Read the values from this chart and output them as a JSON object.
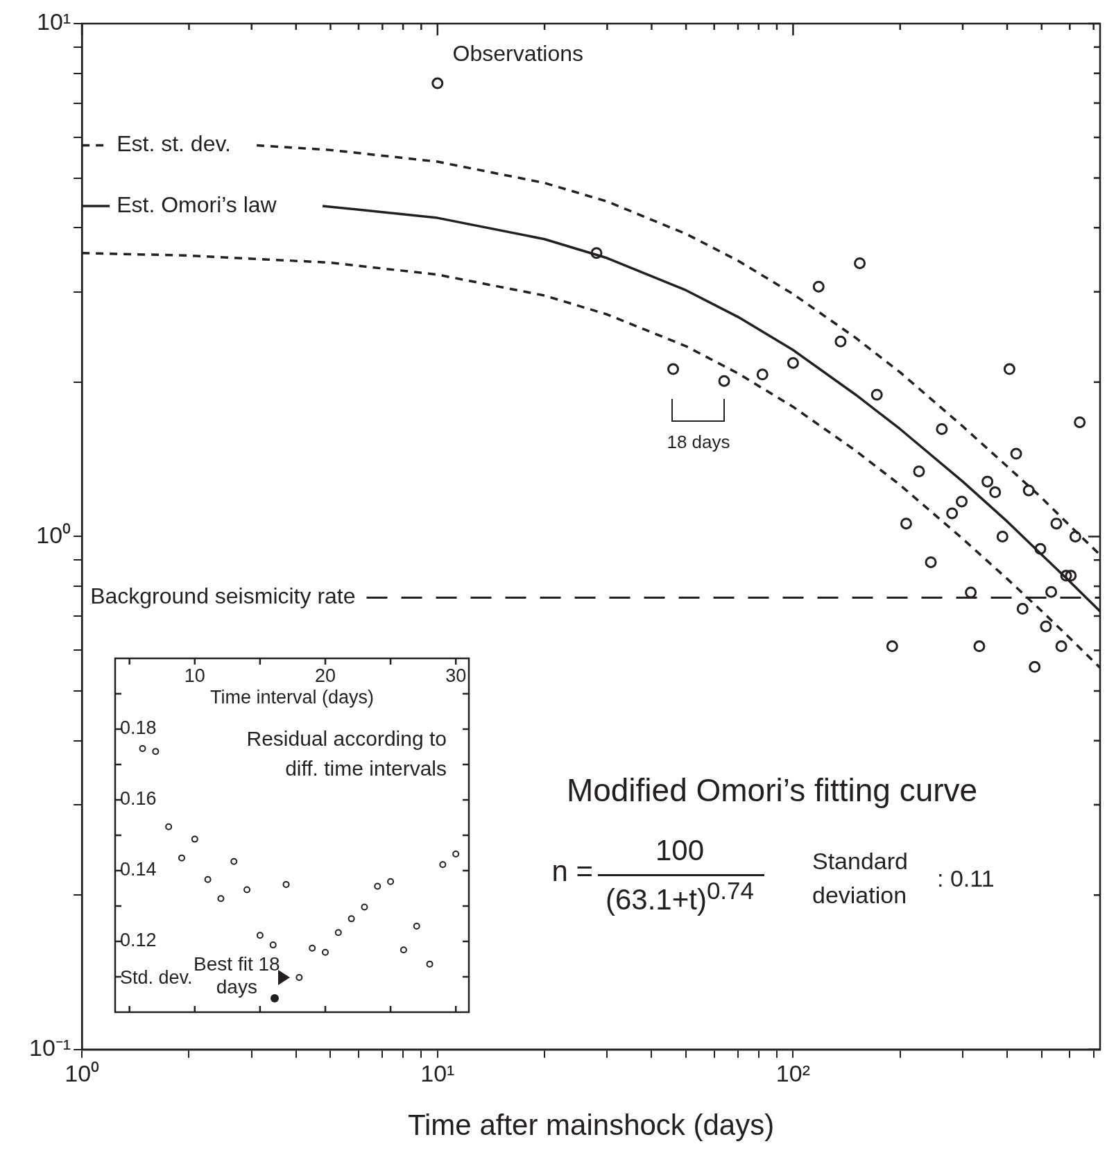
{
  "chart_data": [
    {
      "type": "scatter",
      "xlabel": "Time after mainshock (days)",
      "log": "xy",
      "legend": "left",
      "xlim": [
        1,
        730
      ],
      "ylim": [
        0.1,
        10
      ],
      "xticks": [
        {
          "value": 1,
          "label": "10⁰"
        },
        {
          "value": 2,
          "label": null
        },
        {
          "value": 3,
          "label": null
        },
        {
          "value": 4,
          "label": null
        },
        {
          "value": 5,
          "label": null
        },
        {
          "value": 6,
          "label": null
        },
        {
          "value": 7,
          "label": null
        },
        {
          "value": 8,
          "label": null
        },
        {
          "value": 9,
          "label": null
        },
        {
          "value": 10,
          "label": "10¹"
        },
        {
          "value": 20,
          "label": null
        },
        {
          "value": 30,
          "label": null
        },
        {
          "value": 40,
          "label": null
        },
        {
          "value": 50,
          "label": null
        },
        {
          "value": 60,
          "label": null
        },
        {
          "value": 70,
          "label": null
        },
        {
          "value": 80,
          "label": null
        },
        {
          "value": 90,
          "label": null
        },
        {
          "value": 100,
          "label": "10²"
        },
        {
          "value": 200,
          "label": null
        },
        {
          "value": 300,
          "label": null
        },
        {
          "value": 400,
          "label": null
        },
        {
          "value": 500,
          "label": null
        },
        {
          "value": 600,
          "label": null
        },
        {
          "value": 700,
          "label": null
        }
      ],
      "yticks": [
        {
          "value": 0.1,
          "label": "10⁻¹"
        },
        {
          "value": 0.2,
          "label": null
        },
        {
          "value": 0.3,
          "label": null
        },
        {
          "value": 0.4,
          "label": null
        },
        {
          "value": 0.5,
          "label": null
        },
        {
          "value": 0.6,
          "label": null
        },
        {
          "value": 0.7,
          "label": null
        },
        {
          "value": 0.8,
          "label": null
        },
        {
          "value": 0.9,
          "label": null
        },
        {
          "value": 1,
          "label": "10⁰"
        },
        {
          "value": 2,
          "label": null
        },
        {
          "value": 3,
          "label": null
        },
        {
          "value": 4,
          "label": null
        },
        {
          "value": 5,
          "label": null
        },
        {
          "value": 6,
          "label": null
        },
        {
          "value": 7,
          "label": null
        },
        {
          "value": 8,
          "label": null
        },
        {
          "value": 9,
          "label": null
        },
        {
          "value": 10,
          "label": "10¹"
        }
      ],
      "series": [
        {
          "name": "Observations",
          "type": "scatter",
          "marker": "circle",
          "color": "#231f20",
          "x": [
            10,
            28,
            46,
            64,
            82,
            100,
            118,
            136,
            154,
            172,
            190,
            208,
            226,
            244,
            262,
            280,
            298,
            316,
            334,
            352,
            370,
            388,
            406,
            424,
            442,
            460,
            478,
            496,
            514,
            532,
            550,
            568,
            586,
            604,
            622,
            640
          ],
          "values": [
            7.65,
            3.57,
            2.12,
            2.01,
            2.07,
            2.18,
            3.07,
            2.4,
            3.41,
            1.89,
            0.611,
            1.06,
            1.34,
            0.891,
            1.62,
            1.11,
            1.17,
            0.778,
            0.611,
            1.28,
            1.22,
            1.0,
            2.12,
            1.45,
            0.723,
            1.23,
            0.557,
            0.946,
            0.668,
            0.78,
            1.06,
            0.611,
            0.839,
            0.839,
            1.0,
            1.67
          ]
        },
        {
          "name": "Est. st. dev.",
          "type": "line",
          "line_style": "dashed",
          "color": "#231f20",
          "x": [
            3.1,
            5,
            10,
            20,
            30,
            50,
            70,
            100,
            150,
            200,
            300,
            400,
            500,
            600,
            730
          ],
          "values": [
            5.79,
            5.67,
            5.38,
            4.89,
            4.5,
            3.89,
            3.45,
            2.97,
            2.44,
            2.09,
            1.64,
            1.37,
            1.19,
            1.05,
            0.921
          ]
        },
        {
          "name": "Est. Omori’s law",
          "type": "line",
          "line_style": "solid",
          "color": "#231f20",
          "x": [
            4.75,
            10,
            20,
            30,
            50,
            70,
            100,
            150,
            200,
            300,
            400,
            500,
            600,
            730
          ],
          "values": [
            4.41,
            4.18,
            3.8,
            3.49,
            3.02,
            2.68,
            2.31,
            1.89,
            1.62,
            1.28,
            1.07,
            0.922,
            0.817,
            0.715
          ]
        },
        {
          "type": "line",
          "line_style": "dashed",
          "color": "#231f20",
          "x": [
            1,
            2,
            5,
            10,
            20,
            30,
            50,
            70,
            100,
            150,
            200,
            300,
            400,
            500,
            600,
            730
          ],
          "values": [
            3.57,
            3.53,
            3.42,
            3.24,
            2.95,
            2.71,
            2.35,
            2.08,
            1.79,
            1.47,
            1.26,
            0.99,
            0.827,
            0.716,
            0.634,
            0.555
          ]
        }
      ],
      "ref_lines": [
        {
          "axis": "y",
          "value": 0.76,
          "label": "Background seismicity rate",
          "line_style": "dashed",
          "color": "#231f20"
        }
      ],
      "annotations": [
        "18 days",
        "Modified Omori’s fitting curve",
        "n =",
        "100",
        "(63.1+t)$^{0.74}$",
        "Standard deviation",
        ": 0.11"
      ]
    },
    {
      "type": "scatter",
      "xlabel": "Time interval (days)",
      "ylabel": "Std. dev.",
      "xlim": [
        3.9,
        31
      ],
      "ylim": [
        0.1,
        0.2
      ],
      "xticks": [
        {
          "value": 5,
          "label": null
        },
        10,
        {
          "value": 15,
          "label": null
        },
        20,
        {
          "value": 25,
          "label": null
        },
        30
      ],
      "yticks": [
        {
          "value": 0.11,
          "label": null
        },
        0.12,
        {
          "value": 0.13,
          "label": null
        },
        0.14,
        {
          "value": 0.15,
          "label": null
        },
        0.16,
        {
          "value": 0.17,
          "label": null
        },
        0.18,
        {
          "value": 0.19,
          "label": null
        }
      ],
      "series": [
        {
          "type": "scatter",
          "marker": "circle",
          "color": "#231f20",
          "x": [
            6,
            7,
            8,
            9,
            10,
            11,
            12,
            13,
            14,
            15,
            16,
            17,
            18,
            19,
            20,
            21,
            22,
            23,
            24,
            25,
            26,
            27,
            28,
            29,
            30
          ],
          "values": [
            0.1745,
            0.1737,
            0.1524,
            0.1436,
            0.1489,
            0.1375,
            0.1321,
            0.1426,
            0.1346,
            0.1217,
            0.119,
            0.1361,
            0.1098,
            0.1181,
            0.1169,
            0.1225,
            0.1264,
            0.1297,
            0.1356,
            0.1369,
            0.1176,
            0.1243,
            0.1136,
            0.1417,
            0.1447
          ]
        }
      ],
      "annotations": [
        "Residual according to diff. time intervals",
        {
          "text": "Best fit 18 days",
          "x": 18,
          "y": 0.1098
        }
      ]
    }
  ]
}
